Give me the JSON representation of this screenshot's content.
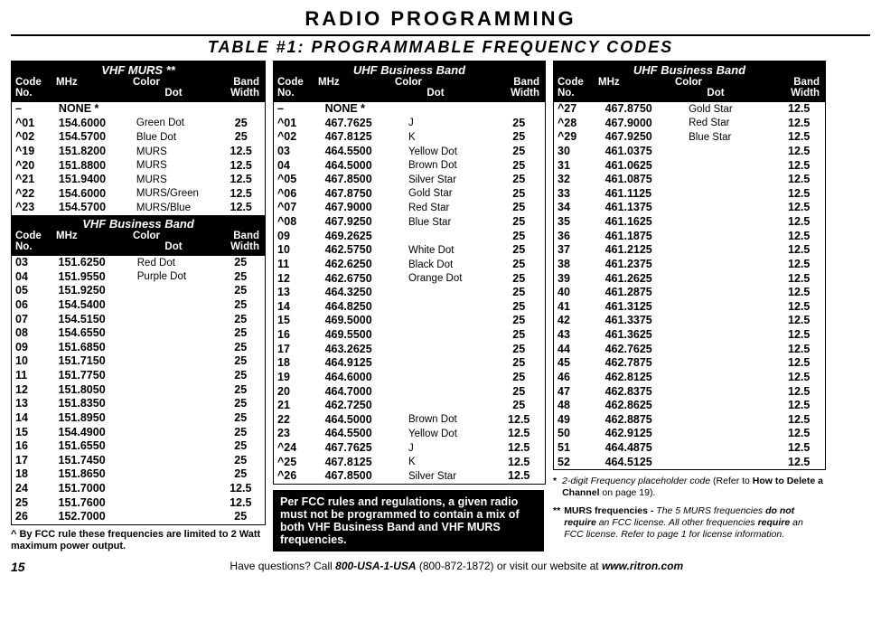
{
  "titles": {
    "page": "RADIO   PROGRAMMING",
    "table": "TABLE #1:   PROGRAMMABLE FREQUENCY CODES"
  },
  "headers": {
    "code1": "Code",
    "code2": "No.",
    "mhz": "MHz",
    "color1": "Color",
    "color2": "Dot",
    "bw1": "Band",
    "bw2": "Width"
  },
  "bands": {
    "vhf_murs": "VHF MURS **",
    "vhf_bus": "VHF Business Band",
    "uhf_bus": "UHF Business Band"
  },
  "table_a": [
    {
      "code": "–",
      "mhz": "NONE *",
      "color": "",
      "bw": ""
    },
    {
      "code": "^01",
      "mhz": "154.6000",
      "color": "Green Dot",
      "bw": "25"
    },
    {
      "code": "^02",
      "mhz": "154.5700",
      "color": "Blue Dot",
      "bw": "25"
    },
    {
      "code": "^19",
      "mhz": "151.8200",
      "color": "MURS",
      "bw": "12.5"
    },
    {
      "code": "^20",
      "mhz": "151.8800",
      "color": "MURS",
      "bw": "12.5"
    },
    {
      "code": "^21",
      "mhz": "151.9400",
      "color": "MURS",
      "bw": "12.5"
    },
    {
      "code": "^22",
      "mhz": "154.6000",
      "color": "MURS/Green",
      "bw": "12.5"
    },
    {
      "code": "^23",
      "mhz": "154.5700",
      "color": "MURS/Blue",
      "bw": "12.5"
    }
  ],
  "table_b": [
    {
      "code": "03",
      "mhz": "151.6250",
      "color": "Red Dot",
      "bw": "25"
    },
    {
      "code": "04",
      "mhz": "151.9550",
      "color": "Purple Dot",
      "bw": "25"
    },
    {
      "code": "05",
      "mhz": "151.9250",
      "color": "",
      "bw": "25"
    },
    {
      "code": "06",
      "mhz": "154.5400",
      "color": "",
      "bw": "25"
    },
    {
      "code": "07",
      "mhz": "154.5150",
      "color": "",
      "bw": "25"
    },
    {
      "code": "08",
      "mhz": "154.6550",
      "color": "",
      "bw": "25"
    },
    {
      "code": "09",
      "mhz": "151.6850",
      "color": "",
      "bw": "25"
    },
    {
      "code": "10",
      "mhz": "151.7150",
      "color": "",
      "bw": "25"
    },
    {
      "code": "11",
      "mhz": "151.7750",
      "color": "",
      "bw": "25"
    },
    {
      "code": "12",
      "mhz": "151.8050",
      "color": "",
      "bw": "25"
    },
    {
      "code": "13",
      "mhz": "151.8350",
      "color": "",
      "bw": "25"
    },
    {
      "code": "14",
      "mhz": "151.8950",
      "color": "",
      "bw": "25"
    },
    {
      "code": "15",
      "mhz": "154.4900",
      "color": "",
      "bw": "25"
    },
    {
      "code": "16",
      "mhz": "151.6550",
      "color": "",
      "bw": "25"
    },
    {
      "code": "17",
      "mhz": "151.7450",
      "color": "",
      "bw": "25"
    },
    {
      "code": "18",
      "mhz": "151.8650",
      "color": "",
      "bw": "25"
    },
    {
      "code": "24",
      "mhz": "151.7000",
      "color": "",
      "bw": "12.5"
    },
    {
      "code": "25",
      "mhz": "151.7600",
      "color": "",
      "bw": "12.5"
    },
    {
      "code": "26",
      "mhz": "152.7000",
      "color": "",
      "bw": "25"
    }
  ],
  "table_c": [
    {
      "code": "–",
      "mhz": "NONE *",
      "color": "",
      "bw": ""
    },
    {
      "code": "^01",
      "mhz": "467.7625",
      "color": "J",
      "bw": "25"
    },
    {
      "code": "^02",
      "mhz": "467.8125",
      "color": "K",
      "bw": "25"
    },
    {
      "code": "03",
      "mhz": "464.5500",
      "color": "Yellow Dot",
      "bw": "25"
    },
    {
      "code": "04",
      "mhz": "464.5000",
      "color": "Brown Dot",
      "bw": "25"
    },
    {
      "code": "^05",
      "mhz": "467.8500",
      "color": "Silver Star",
      "bw": "25"
    },
    {
      "code": "^06",
      "mhz": "467.8750",
      "color": "Gold Star",
      "bw": "25"
    },
    {
      "code": "^07",
      "mhz": "467.9000",
      "color": "Red Star",
      "bw": "25"
    },
    {
      "code": "^08",
      "mhz": "467.9250",
      "color": "Blue Star",
      "bw": "25"
    },
    {
      "code": "09",
      "mhz": "469.2625",
      "color": "",
      "bw": "25"
    },
    {
      "code": "10",
      "mhz": "462.5750",
      "color": "White Dot",
      "bw": "25"
    },
    {
      "code": "11",
      "mhz": "462.6250",
      "color": "Black Dot",
      "bw": "25"
    },
    {
      "code": "12",
      "mhz": "462.6750",
      "color": "Orange Dot",
      "bw": "25"
    },
    {
      "code": "13",
      "mhz": "464.3250",
      "color": "",
      "bw": "25"
    },
    {
      "code": "14",
      "mhz": "464.8250",
      "color": "",
      "bw": "25"
    },
    {
      "code": "15",
      "mhz": "469.5000",
      "color": "",
      "bw": "25"
    },
    {
      "code": "16",
      "mhz": "469.5500",
      "color": "",
      "bw": "25"
    },
    {
      "code": "17",
      "mhz": "463.2625",
      "color": "",
      "bw": "25"
    },
    {
      "code": "18",
      "mhz": "464.9125",
      "color": "",
      "bw": "25"
    },
    {
      "code": "19",
      "mhz": "464.6000",
      "color": "",
      "bw": "25"
    },
    {
      "code": "20",
      "mhz": "464.7000",
      "color": "",
      "bw": "25"
    },
    {
      "code": "21",
      "mhz": "462.7250",
      "color": "",
      "bw": "25"
    },
    {
      "code": "22",
      "mhz": "464.5000",
      "color": "Brown Dot",
      "bw": "12.5"
    },
    {
      "code": "23",
      "mhz": "464.5500",
      "color": "Yellow Dot",
      "bw": "12.5"
    },
    {
      "code": "^24",
      "mhz": "467.7625",
      "color": "J",
      "bw": "12.5"
    },
    {
      "code": "^25",
      "mhz": "467.8125",
      "color": "K",
      "bw": "12.5"
    },
    {
      "code": "^26",
      "mhz": "467.8500",
      "color": "Silver Star",
      "bw": "12.5"
    }
  ],
  "table_d": [
    {
      "code": "^27",
      "mhz": "467.8750",
      "color": "Gold Star",
      "bw": "12.5"
    },
    {
      "code": "^28",
      "mhz": "467.9000",
      "color": "Red Star",
      "bw": "12.5"
    },
    {
      "code": "^29",
      "mhz": "467.9250",
      "color": "Blue Star",
      "bw": "12.5"
    },
    {
      "code": "30",
      "mhz": "461.0375",
      "color": "",
      "bw": "12.5"
    },
    {
      "code": "31",
      "mhz": "461.0625",
      "color": "",
      "bw": "12.5"
    },
    {
      "code": "32",
      "mhz": "461.0875",
      "color": "",
      "bw": "12.5"
    },
    {
      "code": "33",
      "mhz": "461.1125",
      "color": "",
      "bw": "12.5"
    },
    {
      "code": "34",
      "mhz": "461.1375",
      "color": "",
      "bw": "12.5"
    },
    {
      "code": "35",
      "mhz": "461.1625",
      "color": "",
      "bw": "12.5"
    },
    {
      "code": "36",
      "mhz": "461.1875",
      "color": "",
      "bw": "12.5"
    },
    {
      "code": "37",
      "mhz": "461.2125",
      "color": "",
      "bw": "12.5"
    },
    {
      "code": "38",
      "mhz": "461.2375",
      "color": "",
      "bw": "12.5"
    },
    {
      "code": "39",
      "mhz": "461.2625",
      "color": "",
      "bw": "12.5"
    },
    {
      "code": "40",
      "mhz": "461.2875",
      "color": "",
      "bw": "12.5"
    },
    {
      "code": "41",
      "mhz": "461.3125",
      "color": "",
      "bw": "12.5"
    },
    {
      "code": "42",
      "mhz": "461.3375",
      "color": "",
      "bw": "12.5"
    },
    {
      "code": "43",
      "mhz": "461.3625",
      "color": "",
      "bw": "12.5"
    },
    {
      "code": "44",
      "mhz": "462.7625",
      "color": "",
      "bw": "12.5"
    },
    {
      "code": "45",
      "mhz": "462.7875",
      "color": "",
      "bw": "12.5"
    },
    {
      "code": "46",
      "mhz": "462.8125",
      "color": "",
      "bw": "12.5"
    },
    {
      "code": "47",
      "mhz": "462.8375",
      "color": "",
      "bw": "12.5"
    },
    {
      "code": "48",
      "mhz": "462.8625",
      "color": "",
      "bw": "12.5"
    },
    {
      "code": "49",
      "mhz": "462.8875",
      "color": "",
      "bw": "12.5"
    },
    {
      "code": "50",
      "mhz": "462.9125",
      "color": "",
      "bw": "12.5"
    },
    {
      "code": "51",
      "mhz": "464.4875",
      "color": "",
      "bw": "12.5"
    },
    {
      "code": "52",
      "mhz": "464.5125",
      "color": "",
      "bw": "12.5"
    }
  ],
  "notes": {
    "caret": "^   By FCC rule these frequencies are limited to 2 Watt maximum power output.",
    "fcc_box": "Per FCC rules and regulations, a given radio must not be programmed to contain a mix of both VHF Business Band and VHF MURS frequencies.",
    "star_lead": "*",
    "star_text": "2-digit Frequency placeholder code ",
    "star_tail1": "(Refer to ",
    "star_bold": "How to Delete a Channel",
    "star_tail2": " on page 19).",
    "dstar_lead": "**",
    "dstar_bold1": "MURS frequencies - ",
    "dstar_it1": "The 5 MURS frequencies ",
    "dstar_bi1": "do not require",
    "dstar_it2": " an FCC license. All other frequencies ",
    "dstar_bi2": "require",
    "dstar_it3": " an FCC license. Refer  to page 1 for license information."
  },
  "footer": {
    "page_no": "15",
    "text1": "Have questions? Call ",
    "phone_bold": "800-USA-1-USA",
    "phone_plain": " (800-872-1872) or visit our website at ",
    "site": "www.ritron.com"
  }
}
